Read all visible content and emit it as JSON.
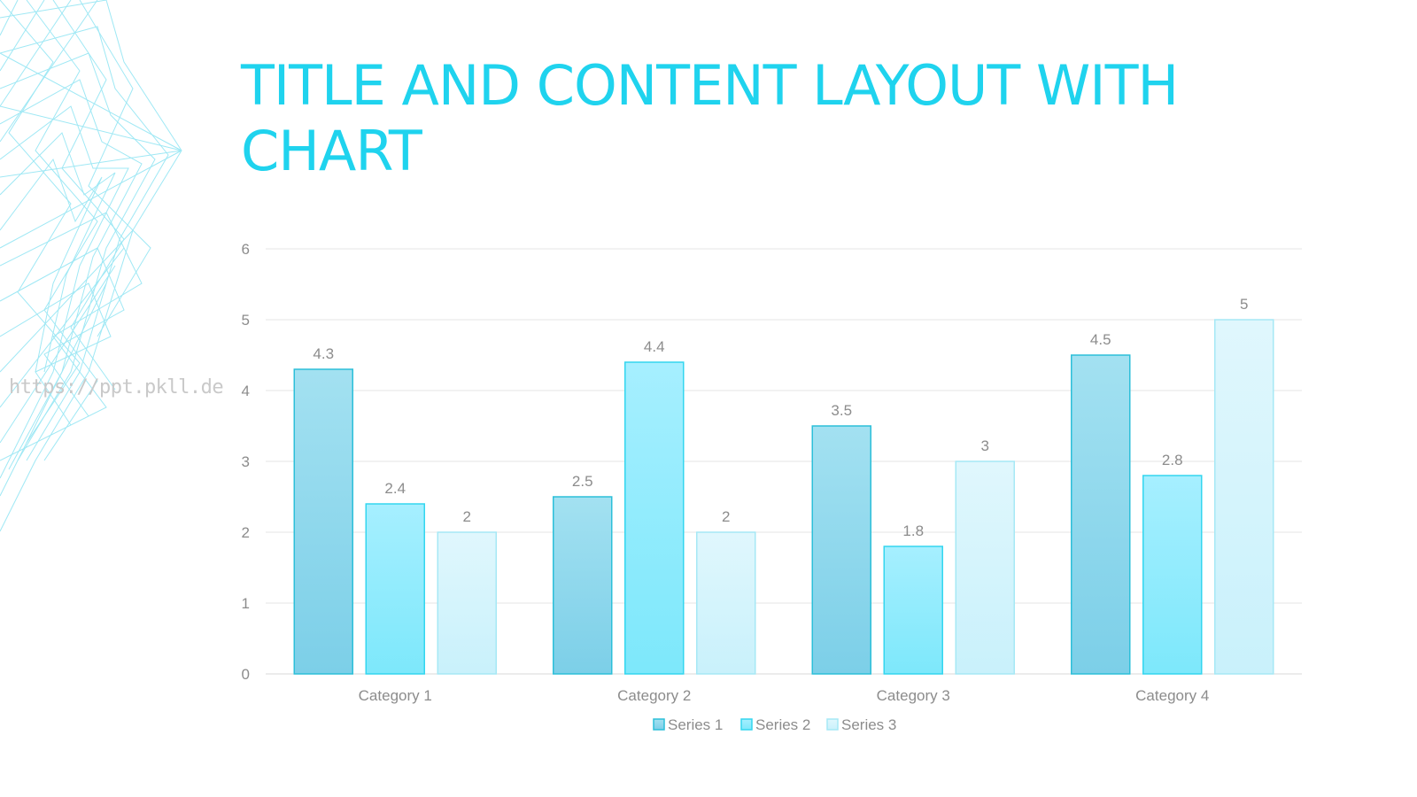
{
  "slide": {
    "title": "TITLE AND CONTENT LAYOUT WITH CHART",
    "watermark": "https://ppt.pkll.de",
    "accent_color": "#1fd3ee"
  },
  "chart_data": {
    "type": "bar",
    "title": "",
    "xlabel": "",
    "ylabel": "",
    "categories": [
      "Category 1",
      "Category 2",
      "Category 3",
      "Category 4"
    ],
    "series": [
      {
        "name": "Series 1",
        "values": [
          4.3,
          2.5,
          3.5,
          4.5
        ],
        "color_top": "#a3e1f1",
        "color_bottom": "#7ccfe8",
        "stroke": "#2cbfd9"
      },
      {
        "name": "Series 2",
        "values": [
          2.4,
          4.4,
          1.8,
          2.8
        ],
        "color_top": "#a6efff",
        "color_bottom": "#7de8fb",
        "stroke": "#33d6ef"
      },
      {
        "name": "Series 3",
        "values": [
          2,
          2,
          3,
          5
        ],
        "color_top": "#e0f7fd",
        "color_bottom": "#c9f1fb",
        "stroke": "#a6e8f5"
      }
    ],
    "ylim": [
      0,
      6
    ],
    "yticks": [
      0,
      1,
      2,
      3,
      4,
      5,
      6
    ],
    "data_labels": true,
    "grid": true,
    "legend_position": "bottom"
  }
}
